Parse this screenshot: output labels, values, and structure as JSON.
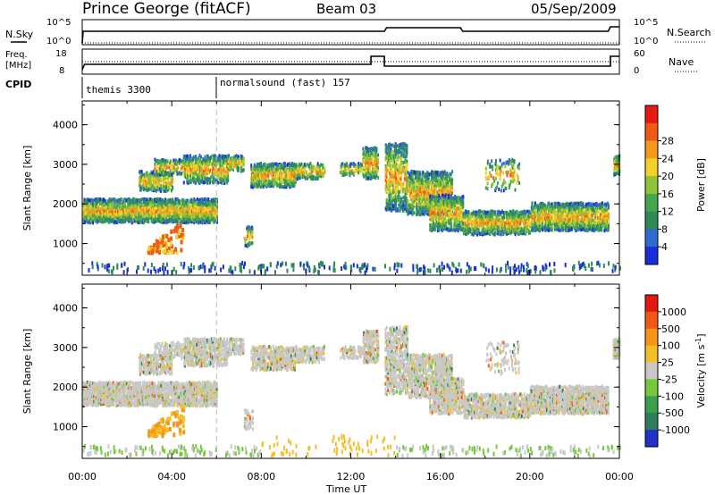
{
  "header": {
    "title": "Prince George (fitACF)",
    "beam": "Beam 03",
    "date": "05/Sep/2009"
  },
  "labels": {
    "nsky": "N.Sky",
    "nsearch": "N.Search",
    "freq": "Freq.",
    "mhz": "[MHz]",
    "nave": "Nave",
    "cpid": "CPID",
    "noise_ticks_left": [
      "10^5",
      "10^0"
    ],
    "noise_ticks_right": [
      "10^5",
      "10^0"
    ],
    "freq_ticks": [
      "18",
      "8"
    ],
    "nave_ticks": [
      "60",
      "0"
    ]
  },
  "cpid": {
    "segments": [
      {
        "label": "themis 3300",
        "start_hour": 0
      },
      {
        "label": "normalsound (fast) 157",
        "start_hour": 6
      }
    ]
  },
  "chart_data": [
    {
      "type": "heatmap",
      "name": "power",
      "ylabel": "Slant Range [km]",
      "ylim": [
        200,
        4600
      ],
      "yticks": [
        "1000",
        "2000",
        "3000",
        "4000"
      ],
      "xlim_hours": [
        0,
        24
      ],
      "colorbar": {
        "label": "Power [dB]",
        "ticks": [
          "4",
          "8",
          "12",
          "16",
          "20",
          "24",
          "28"
        ],
        "colors": [
          "#1a2ed8",
          "#2e6bd0",
          "#2e8b57",
          "#44a84a",
          "#8fc43a",
          "#f2d22a",
          "#f59a1d",
          "#ef5a16",
          "#e51a10"
        ]
      }
    },
    {
      "type": "heatmap",
      "name": "velocity",
      "ylabel": "Slant Range [km]",
      "ylim": [
        200,
        4600
      ],
      "yticks": [
        "1000",
        "2000",
        "3000",
        "4000"
      ],
      "xlim_hours": [
        0,
        24
      ],
      "colorbar": {
        "label": "Velocity [m s",
        "label_sup": "-1",
        "label_close": "]",
        "ticks": [
          "1000",
          "500",
          "100",
          "25",
          "-25",
          "-100",
          "-500",
          "-1000"
        ],
        "colors": [
          "#2231c8",
          "#2e7c5c",
          "#3aa04a",
          "#74c83a",
          "#c8c8c8",
          "#f2bf2a",
          "#f5951a",
          "#ef5a16",
          "#e01a10"
        ]
      }
    }
  ],
  "xaxis": {
    "label": "Time UT",
    "ticks": [
      "00:00",
      "04:00",
      "08:00",
      "12:00",
      "16:00",
      "20:00",
      "00:00"
    ]
  }
}
